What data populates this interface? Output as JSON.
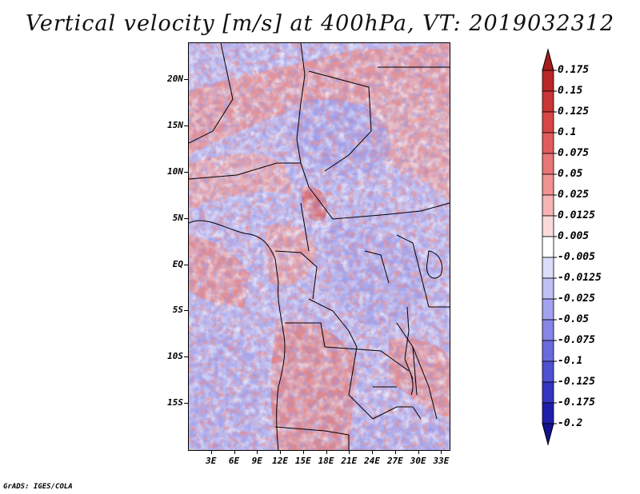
{
  "title": "Vertical velocity [m/s] at 400hPa, VT: 2019032312",
  "footer": "GrADS: IGES/COLA",
  "map": {
    "lon_range": [
      0,
      34
    ],
    "lat_range": [
      -20,
      24
    ],
    "lat_ticks": [
      {
        "value": 20,
        "label": "20N"
      },
      {
        "value": 15,
        "label": "15N"
      },
      {
        "value": 10,
        "label": "10N"
      },
      {
        "value": 5,
        "label": "5N"
      },
      {
        "value": 0,
        "label": "EQ"
      },
      {
        "value": -5,
        "label": "5S"
      },
      {
        "value": -10,
        "label": "10S"
      },
      {
        "value": -15,
        "label": "15S"
      }
    ],
    "lon_ticks": [
      {
        "value": 3,
        "label": "3E"
      },
      {
        "value": 6,
        "label": "6E"
      },
      {
        "value": 9,
        "label": "9E"
      },
      {
        "value": 12,
        "label": "12E"
      },
      {
        "value": 15,
        "label": "15E"
      },
      {
        "value": 18,
        "label": "18E"
      },
      {
        "value": 21,
        "label": "21E"
      },
      {
        "value": 24,
        "label": "24E"
      },
      {
        "value": 27,
        "label": "27E"
      },
      {
        "value": 30,
        "label": "30E"
      },
      {
        "value": 33,
        "label": "33E"
      }
    ]
  },
  "colorbar": {
    "labels": [
      "0.175",
      "0.15",
      "0.125",
      "0.1",
      "0.075",
      "0.05",
      "0.025",
      "0.0125",
      "0.005",
      "-0.005",
      "-0.0125",
      "-0.025",
      "-0.05",
      "-0.075",
      "-0.1",
      "-0.125",
      "-0.175",
      "-0.2"
    ],
    "colors": [
      "#a51c1c",
      "#b82626",
      "#c93434",
      "#d84646",
      "#e05c5c",
      "#e87676",
      "#f09292",
      "#f6b4b4",
      "#fbdada",
      "#ffffff",
      "#dcdcfa",
      "#c0c0f4",
      "#a2a2ee",
      "#8686e6",
      "#6a6ade",
      "#5050d2",
      "#3434c0",
      "#1e1eaa",
      "#121290"
    ]
  }
}
